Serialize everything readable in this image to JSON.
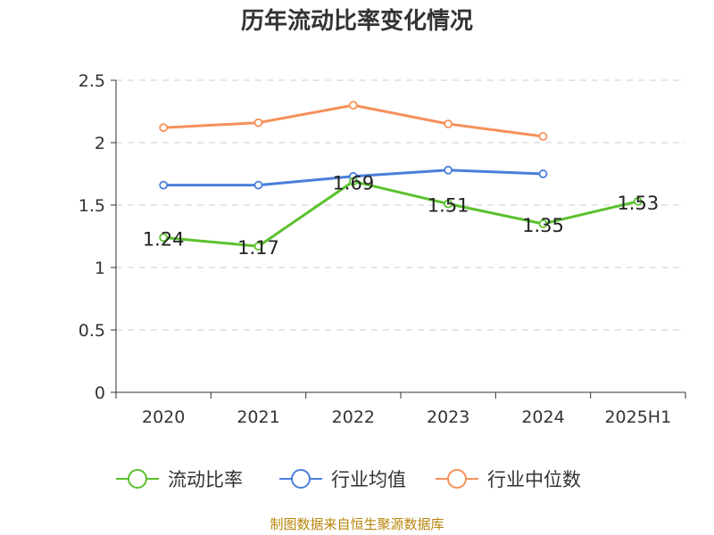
{
  "chart_data": {
    "type": "line",
    "title": "历年流动比率变化情况",
    "categories": [
      "2020",
      "2021",
      "2022",
      "2023",
      "2024",
      "2025H1"
    ],
    "ylim": [
      0,
      2.5
    ],
    "yticks": [
      "0",
      "0.5",
      "1",
      "1.5",
      "2",
      "2.5"
    ],
    "grid": true,
    "legend_position": "bottom",
    "series": [
      {
        "name": "流动比率",
        "color": "#5cc12f",
        "values": [
          1.24,
          1.17,
          1.69,
          1.51,
          1.35,
          1.53
        ],
        "labels": [
          "1.24",
          "1.17",
          "1.69",
          "1.51",
          "1.35",
          "1.53"
        ]
      },
      {
        "name": "行业均值",
        "color": "#4a7fdc",
        "values": [
          1.66,
          1.66,
          1.73,
          1.78,
          1.75,
          null
        ]
      },
      {
        "name": "行业中位数",
        "color": "#f5915a",
        "values": [
          2.12,
          2.16,
          2.3,
          2.15,
          2.05,
          null
        ]
      }
    ],
    "source": "制图数据来自恒生聚源数据库"
  }
}
